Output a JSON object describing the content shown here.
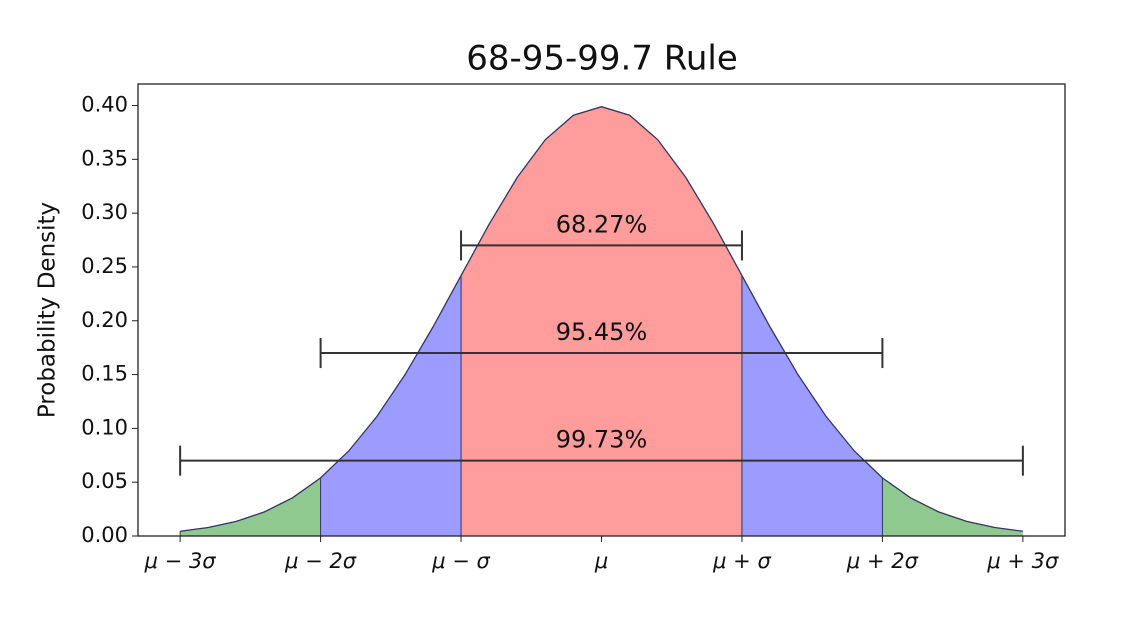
{
  "chart_data": {
    "type": "area",
    "title": "68-95-99.7 Rule",
    "y_label": "Probability Density",
    "x": [
      -3,
      -2.8,
      -2.6,
      -2.4,
      -2.2,
      -2,
      -1.8,
      -1.6,
      -1.4,
      -1.2,
      -1,
      -0.8,
      -0.6,
      -0.4,
      -0.2,
      0,
      0.2,
      0.4,
      0.6,
      0.8,
      1,
      1.2,
      1.4,
      1.6,
      1.8,
      2,
      2.2,
      2.4,
      2.6,
      2.8,
      3
    ],
    "values": [
      0.0044,
      0.0079,
      0.0136,
      0.0224,
      0.0355,
      0.054,
      0.079,
      0.1109,
      0.1497,
      0.1942,
      0.242,
      0.2897,
      0.3332,
      0.3683,
      0.391,
      0.3989,
      0.391,
      0.3683,
      0.3332,
      0.2897,
      0.242,
      0.1942,
      0.1497,
      0.1109,
      0.079,
      0.054,
      0.0355,
      0.0224,
      0.0136,
      0.0079,
      0.0044
    ],
    "line_color": "#333366",
    "regions": [
      {
        "xlim": [
          -3,
          -2
        ],
        "color": "#8fc98f"
      },
      {
        "xlim": [
          -2,
          -1
        ],
        "color": "#9c9cff"
      },
      {
        "xlim": [
          -1,
          1
        ],
        "color": "#ff9c9c"
      },
      {
        "xlim": [
          1,
          2
        ],
        "color": "#9c9cff"
      },
      {
        "xlim": [
          2,
          3
        ],
        "color": "#8fc98f"
      }
    ],
    "intervals": [
      {
        "label": "68.27%",
        "xlim": [
          -1,
          1
        ],
        "y": 0.27
      },
      {
        "label": "95.45%",
        "xlim": [
          -2,
          2
        ],
        "y": 0.17
      },
      {
        "label": "99.73%",
        "xlim": [
          -3,
          3
        ],
        "y": 0.07
      }
    ],
    "xlim": [
      -3.3,
      3.3
    ],
    "ylim": [
      0,
      0.42
    ],
    "xticks": [
      {
        "value": -3,
        "label": "μ − 3σ"
      },
      {
        "value": -2,
        "label": "μ − 2σ"
      },
      {
        "value": -1,
        "label": "μ − σ"
      },
      {
        "value": 0,
        "label": "μ"
      },
      {
        "value": 1,
        "label": "μ + σ"
      },
      {
        "value": 2,
        "label": "μ + 2σ"
      },
      {
        "value": 3,
        "label": "μ + 3σ"
      }
    ],
    "yticks": [
      {
        "value": 0,
        "label": "0.00"
      },
      {
        "value": 0.05,
        "label": "0.05"
      },
      {
        "value": 0.1,
        "label": "0.10"
      },
      {
        "value": 0.15,
        "label": "0.15"
      },
      {
        "value": 0.2,
        "label": "0.20"
      },
      {
        "value": 0.25,
        "label": "0.25"
      },
      {
        "value": 0.3,
        "label": "0.30"
      },
      {
        "value": 0.35,
        "label": "0.35"
      },
      {
        "value": 0.4,
        "label": "0.40"
      }
    ]
  }
}
